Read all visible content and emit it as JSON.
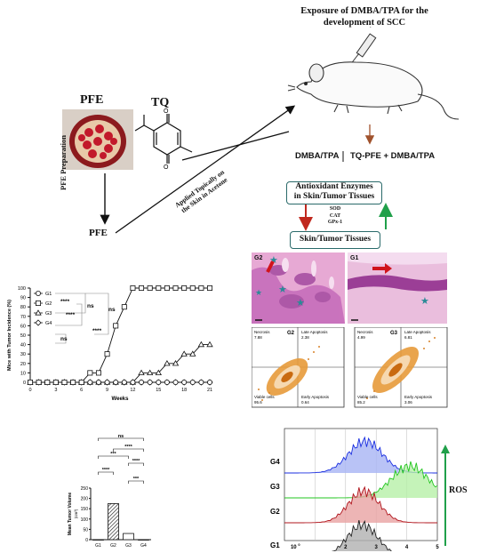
{
  "exposure_title_line1": "Exposure of DMBA/TPA for the",
  "exposure_title_line2": "development of SCC",
  "pfe_label": "PFE",
  "tq_label": "TQ",
  "pfe_prep_label": "PFE Preparation",
  "pfe_bottom_label": "PFE",
  "applied_label_line1": "Applied Topically on",
  "applied_label_line2": "the Skin in Acetone",
  "dmba_label": "DMBA/TPA",
  "tq_pfe_label": "TQ-PFE + DMBA/TPA",
  "antioxidant_line1": "Antioxidant Enzymes",
  "antioxidant_line2": "in Skin/Tumor Tissues",
  "enzymes": [
    "SOD",
    "CAT",
    "GPx-1"
  ],
  "skin_tissues_label": "Skin/Tumor Tissues",
  "histology": {
    "left_label": "G2",
    "right_label": "G1"
  },
  "flow": {
    "panels": [
      {
        "group": "G2",
        "necrosis": "Necrosis",
        "necrosis_val": "7.88",
        "late": "Late Apoptosis",
        "late_val": "2.38",
        "viable": "Viable cells",
        "viable_val": "95.6",
        "early": "Early Apoptosis",
        "early_val": "0.64"
      },
      {
        "group": "G3",
        "necrosis": "Necrosis",
        "necrosis_val": "4.99",
        "late": "Late Apoptosis",
        "late_val": "6.81",
        "viable": "Viable cells",
        "viable_val": "85.2",
        "early": "Early Apoptosis",
        "early_val": "3.06"
      }
    ]
  },
  "ros": {
    "label": "ROS",
    "groups": [
      "G4",
      "G3",
      "G2",
      "G1"
    ],
    "colors": [
      "#1a2ee0",
      "#22c51f",
      "#b0141c",
      "#222222"
    ],
    "fills": [
      "#a8b4f4",
      "#b7f0a8",
      "#e8a2a2",
      "#b0b0b0"
    ],
    "peaks": [
      2.65,
      4.1,
      2.6,
      2.55
    ],
    "widths": [
      0.55,
      0.6,
      0.5,
      0.5
    ],
    "x_ticks": [
      "10",
      "2",
      "3",
      "4",
      "5"
    ],
    "x_tick_sup": [
      "0",
      "",
      "",
      "",
      ""
    ]
  },
  "chart_data": [
    {
      "type": "line",
      "xlabel": "Weeks",
      "ylabel": "Mice with Tumor Incidence (%)",
      "ylim": [
        0,
        100
      ],
      "xlim": [
        0,
        21
      ],
      "x": [
        0,
        1,
        2,
        3,
        4,
        5,
        6,
        7,
        8,
        9,
        10,
        11,
        12,
        13,
        14,
        15,
        16,
        17,
        18,
        19,
        20,
        21
      ],
      "x_ticks": [
        0,
        3,
        6,
        9,
        12,
        15,
        18,
        21
      ],
      "y_ticks": [
        0,
        10,
        20,
        30,
        40,
        50,
        60,
        70,
        80,
        90,
        100
      ],
      "legend": [
        "G1",
        "G2",
        "G3",
        "G4"
      ],
      "legend_position": "top-left",
      "series": [
        {
          "name": "G1",
          "marker": "circle",
          "values": [
            0,
            0,
            0,
            0,
            0,
            0,
            0,
            0,
            0,
            0,
            0,
            0,
            0,
            0,
            0,
            0,
            0,
            0,
            0,
            0,
            0,
            0
          ]
        },
        {
          "name": "G2",
          "marker": "square",
          "values": [
            0,
            0,
            0,
            0,
            0,
            0,
            0,
            10,
            10,
            30,
            60,
            80,
            100,
            100,
            100,
            100,
            100,
            100,
            100,
            100,
            100,
            100
          ]
        },
        {
          "name": "G3",
          "marker": "triangle",
          "values": [
            0,
            0,
            0,
            0,
            0,
            0,
            0,
            0,
            0,
            0,
            0,
            0,
            0,
            10,
            10,
            10,
            20,
            20,
            30,
            30,
            40,
            40
          ]
        },
        {
          "name": "G4",
          "marker": "diamond",
          "values": [
            0,
            0,
            0,
            0,
            0,
            0,
            0,
            0,
            0,
            0,
            0,
            0,
            0,
            0,
            0,
            0,
            0,
            0,
            0,
            0,
            0,
            0
          ]
        }
      ],
      "annotations": [
        "****",
        "****",
        "ns",
        "****",
        "ns",
        "ns"
      ]
    },
    {
      "type": "bar",
      "ylabel": "Mean Tumor Volume",
      "yunit": "(cm³)",
      "categories": [
        "G1",
        "G2",
        "G3",
        "G4"
      ],
      "values": [
        0,
        175,
        30,
        0
      ],
      "ylim": [
        0,
        250
      ],
      "y_ticks": [
        0,
        50,
        100,
        150,
        200,
        250
      ],
      "annotations": [
        "ns",
        "****",
        "***",
        "****",
        "****",
        "***"
      ]
    }
  ]
}
